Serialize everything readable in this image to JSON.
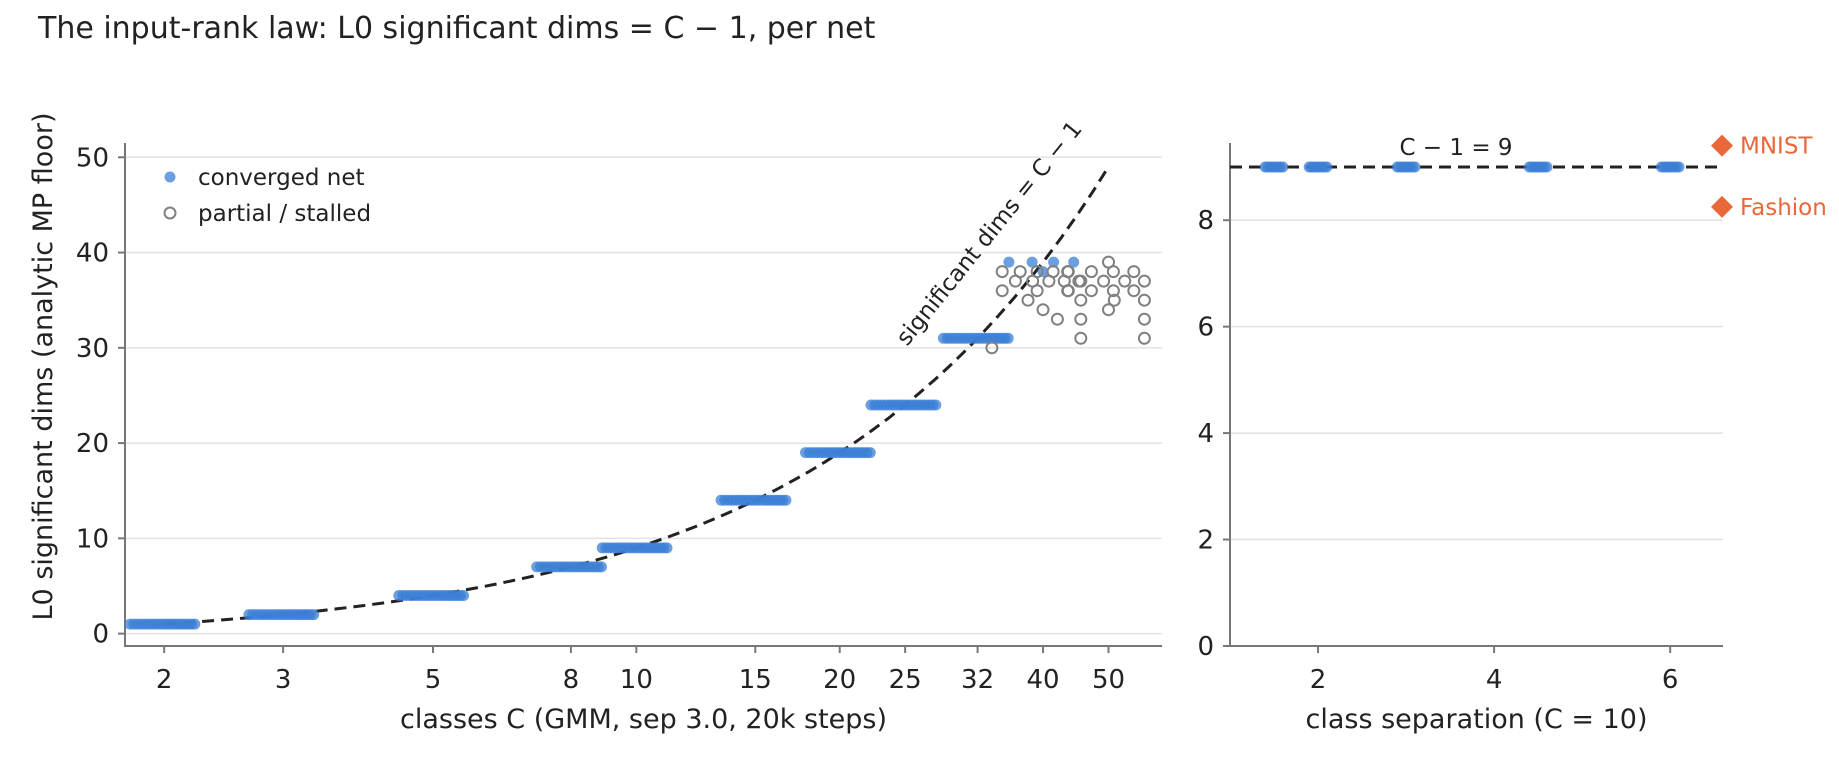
{
  "title": "The input-rank law: L0 significant dims = C − 1, per net",
  "colors": {
    "converged": "#3b7fd6",
    "partial": "#808080",
    "reference": "#e8683a",
    "law_line": "#222222"
  },
  "chart_data": [
    {
      "type": "scatter",
      "x_scale": "log",
      "xlabel": "classes C (GMM, sep 3.0, 20k steps)",
      "ylabel": "L0 significant dims (analytic MP floor)",
      "xticks": [
        2,
        3,
        5,
        8,
        10,
        15,
        20,
        25,
        32,
        40,
        50
      ],
      "yticks": [
        0,
        10,
        20,
        30,
        40,
        50
      ],
      "xlim": [
        1.75,
        60
      ],
      "ylim": [
        -1.3,
        51.5
      ],
      "grid": "horizontal",
      "legend_position": "top-left",
      "legend": [
        "converged net",
        "partial / stalled"
      ],
      "law_line": {
        "label": "significant dims = C − 1",
        "x": [
          2,
          50
        ],
        "y": [
          1,
          49
        ]
      },
      "series": [
        {
          "name": "converged net",
          "marker": "filled-circle",
          "points": [
            [
              2,
              1,
              20
            ],
            [
              3,
              2,
              20
            ],
            [
              5,
              4,
              20
            ],
            [
              8,
              7,
              20
            ],
            [
              10,
              9,
              20
            ],
            [
              15,
              14,
              20
            ],
            [
              20,
              19,
              20
            ],
            [
              25,
              24,
              20
            ],
            [
              32,
              31,
              20
            ],
            [
              40,
              39,
              4
            ],
            [
              40,
              38,
              1
            ]
          ]
        },
        {
          "name": "partial / stalled",
          "marker": "open-circle",
          "points": [
            [
              32,
              30,
              1
            ],
            [
              40,
              38,
              5
            ],
            [
              40,
              37,
              5
            ],
            [
              40,
              36,
              3
            ],
            [
              40,
              35,
              1
            ],
            [
              40,
              34,
              1
            ],
            [
              40,
              33,
              1
            ],
            [
              50,
              39,
              1
            ],
            [
              50,
              38,
              4
            ],
            [
              50,
              37,
              4
            ],
            [
              50,
              36,
              4
            ],
            [
              50,
              35,
              3
            ],
            [
              50,
              34,
              1
            ],
            [
              50,
              33,
              2
            ],
            [
              50,
              31,
              2
            ]
          ]
        }
      ]
    },
    {
      "type": "scatter",
      "xlabel": "class separation (C = 10)",
      "ylabel": "",
      "xticks": [
        2,
        4,
        6
      ],
      "yticks": [
        0,
        2,
        4,
        6,
        8
      ],
      "xlim": [
        1.0,
        6.6
      ],
      "ylim": [
        0,
        9.45
      ],
      "grid": "horizontal",
      "reference_line": {
        "label": "C − 1 = 9",
        "y": 9
      },
      "series": [
        {
          "name": "converged net",
          "marker": "filled-circle",
          "points": [
            [
              1.5,
              9,
              8
            ],
            [
              2.0,
              9,
              8
            ],
            [
              3.0,
              9,
              8
            ],
            [
              4.5,
              9,
              8
            ],
            [
              6.0,
              9,
              8
            ]
          ]
        }
      ],
      "references": [
        {
          "name": "MNIST",
          "value": 9.4,
          "marker": "diamond"
        },
        {
          "name": "Fashion",
          "value": 8.25,
          "marker": "diamond"
        }
      ]
    }
  ]
}
